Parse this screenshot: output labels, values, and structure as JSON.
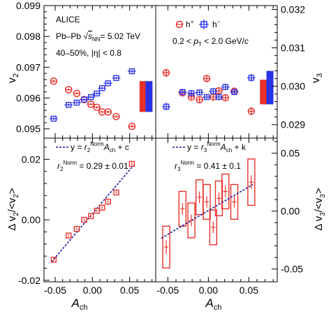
{
  "figure": {
    "ylabel_top_left": "v2",
    "ylabel_top_right": "v3",
    "ylabel_bottom_left": "Δ v2/<v2>",
    "ylabel_bottom_right": "Δ v3/<v3>",
    "xlabel": "Ach",
    "experiment": "ALICE",
    "system_prefix": "Pb–Pb",
    "system_energy": "= 5.02 TeV",
    "centrality": "40–50%, |η| < 0.8",
    "pt_range": "0.2 < pT < 2.0 GeV/c",
    "legend_hplus": "h+",
    "legend_hminus": "h−",
    "fit2_label": "y = r2Norm Ach + c",
    "fit2_result": "r2Norm = 0.29 ± 0.01",
    "fit3_label": "y = r3Norm Ach + k",
    "fit3_result": "r3Norm = 0.41 ± 0.1",
    "colors": {
      "hplus": "#e8302a",
      "hminus": "#2a32e8",
      "fit": "#1a1aa0"
    }
  },
  "chart_data": [
    {
      "type": "scatter",
      "panel": "top-left",
      "ylabel": "v2",
      "ylim": [
        0.0947,
        0.099
      ],
      "yticks": [
        0.095,
        0.096,
        0.097,
        0.098,
        0.099
      ],
      "xlim": [
        -0.065,
        0.085
      ],
      "series": [
        {
          "name": "h+",
          "x": [
            -0.052,
            -0.032,
            -0.021,
            -0.011,
            -0.002,
            0.006,
            0.013,
            0.021,
            0.032,
            0.053
          ],
          "y": [
            0.09655,
            0.09627,
            0.09615,
            0.09595,
            0.0958,
            0.0957,
            0.09555,
            0.09555,
            0.0954,
            0.09508
          ],
          "yerr": [
            4e-05,
            4e-05,
            4e-05,
            4e-05,
            4e-05,
            4e-05,
            4e-05,
            4e-05,
            4e-05,
            5e-05
          ]
        },
        {
          "name": "h−",
          "x": [
            -0.052,
            -0.032,
            -0.021,
            -0.011,
            -0.002,
            0.006,
            0.013,
            0.021,
            0.032,
            0.053
          ],
          "y": [
            0.09533,
            0.09578,
            0.09585,
            0.09595,
            0.09603,
            0.09615,
            0.09632,
            0.09648,
            0.09665,
            0.09687
          ],
          "yerr": [
            4e-05,
            4e-05,
            4e-05,
            4e-05,
            4e-05,
            4e-05,
            4e-05,
            4e-05,
            4e-05,
            5e-05
          ]
        }
      ],
      "syst_bands": [
        {
          "name": "h+",
          "x": 0.068,
          "ymin": 0.09555,
          "ymax": 0.09655
        },
        {
          "name": "h−",
          "x": 0.076,
          "ymin": 0.09555,
          "ymax": 0.09655
        }
      ]
    },
    {
      "type": "scatter",
      "panel": "top-right",
      "ylabel": "v3",
      "ylim": [
        0.02865,
        0.0321
      ],
      "yticks": [
        0.029,
        0.03,
        0.031,
        0.032
      ],
      "xlim": [
        -0.065,
        0.085
      ],
      "series": [
        {
          "name": "h+",
          "x": [
            -0.052,
            -0.032,
            -0.021,
            -0.011,
            -0.002,
            0.006,
            0.013,
            0.021,
            0.032,
            0.053
          ],
          "y": [
            0.03035,
            0.02983,
            0.02972,
            0.02965,
            0.0302,
            0.02972,
            0.02988,
            0.0297,
            0.02987,
            0.02935
          ],
          "yerr": [
            0.0001,
            8e-05,
            8e-05,
            7e-05,
            7e-05,
            7e-05,
            8e-05,
            8e-05,
            8e-05,
            0.0001
          ]
        },
        {
          "name": "h−",
          "x": [
            -0.052,
            -0.032,
            -0.021,
            -0.011,
            -0.002,
            0.006,
            0.013,
            0.021,
            0.032,
            0.053
          ],
          "y": [
            0.02947,
            0.02985,
            0.02982,
            0.02984,
            0.02972,
            0.02987,
            0.02972,
            0.02998,
            0.02985,
            0.03022
          ],
          "yerr": [
            0.0001,
            8e-05,
            8e-05,
            7e-05,
            7e-05,
            7e-05,
            8e-05,
            8e-05,
            8e-05,
            0.0001
          ]
        }
      ],
      "syst_bands": [
        {
          "name": "h+",
          "x": 0.068,
          "ymin": 0.02953,
          "ymax": 0.03017
        },
        {
          "name": "h−",
          "x": 0.076,
          "ymin": 0.02953,
          "ymax": 0.0304
        }
      ]
    },
    {
      "type": "scatter",
      "panel": "bottom-left",
      "ylabel": "Δ v2/<v2>",
      "xlabel": "Ach",
      "ylim": [
        -0.0205,
        0.027
      ],
      "yticks": [
        -0.02,
        0.0,
        0.02
      ],
      "xlim": [
        -0.065,
        0.085
      ],
      "xticks": [
        -0.05,
        0.0,
        0.05
      ],
      "points": {
        "x": [
          -0.052,
          -0.032,
          -0.021,
          -0.011,
          -0.002,
          0.006,
          0.013,
          0.021,
          0.032,
          0.053
        ],
        "y": [
          -0.0132,
          -0.0052,
          -0.003,
          0.0,
          0.0012,
          0.003,
          0.004,
          0.006,
          0.009,
          0.0185
        ],
        "yerr": [
          0.0004,
          0.0004,
          0.0004,
          0.0004,
          0.0004,
          0.0004,
          0.0004,
          0.0004,
          0.0004,
          0.0005
        ]
      },
      "fit": {
        "slope": 0.29,
        "intercept": 0.002,
        "x_range": [
          -0.055,
          0.055
        ]
      }
    },
    {
      "type": "scatter",
      "panel": "bottom-right",
      "ylabel": "Δ v3/<v3>",
      "xlabel": "Ach",
      "ylim": [
        -0.061,
        0.063
      ],
      "yticks": [
        -0.05,
        0.0,
        0.05
      ],
      "xlim": [
        -0.065,
        0.085
      ],
      "xticks": [
        -0.05,
        0.0,
        0.05
      ],
      "points": {
        "x": [
          -0.052,
          -0.032,
          -0.021,
          -0.011,
          -0.002,
          0.006,
          0.013,
          0.021,
          0.032,
          0.053
        ],
        "y": [
          -0.031,
          0.002,
          -0.008,
          0.012,
          0.008,
          -0.014,
          0.011,
          0.017,
          0.008,
          0.025
        ],
        "yerr": [
          0.006,
          0.005,
          0.005,
          0.005,
          0.005,
          0.005,
          0.005,
          0.005,
          0.005,
          0.006
        ],
        "syst": [
          0.018,
          0.015,
          0.015,
          0.015,
          0.015,
          0.015,
          0.015,
          0.015,
          0.015,
          0.02
        ]
      },
      "fit": {
        "slope": 0.41,
        "intercept": 0.0005,
        "x_range": [
          -0.058,
          0.055
        ]
      }
    }
  ]
}
